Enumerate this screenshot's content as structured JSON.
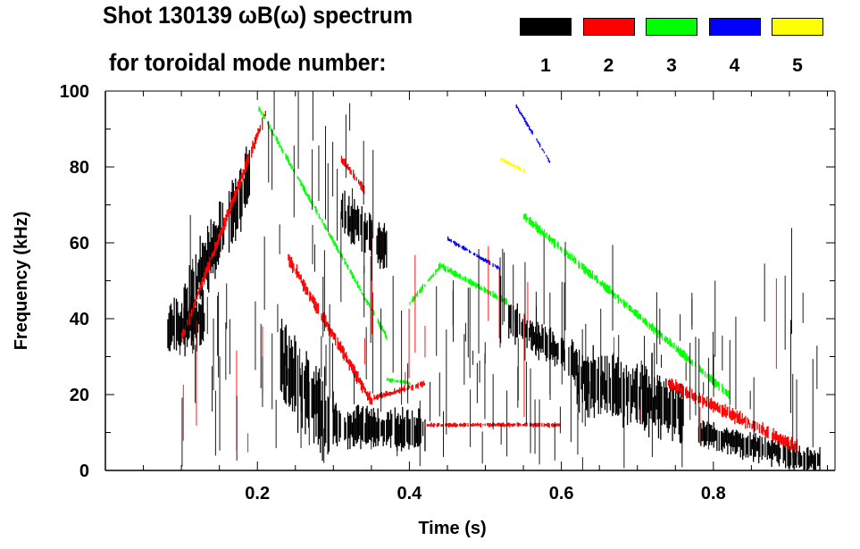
{
  "chart_data": {
    "type": "heatmap",
    "title": "Shot 130139 ωB(ω) spectrum",
    "subtitle": "for toroidal mode number:",
    "xlabel": "Time (s)",
    "ylabel": "Frequency (kHz)",
    "xlim": [
      0,
      0.96
    ],
    "ylim": [
      0,
      100
    ],
    "xticks": [
      "0.2",
      "0.4",
      "0.6",
      "0.8"
    ],
    "xtick_values": [
      0.2,
      0.4,
      0.6,
      0.8
    ],
    "yticks": [
      "0",
      "20",
      "40",
      "60",
      "80",
      "100"
    ],
    "ytick_values": [
      0,
      20,
      40,
      60,
      80,
      100
    ],
    "legend": [
      {
        "label": "1",
        "color": "#000000"
      },
      {
        "label": "2",
        "color": "#ff0000"
      },
      {
        "label": "3",
        "color": "#00ff00"
      },
      {
        "label": "4",
        "color": "#0000ff"
      },
      {
        "label": "5",
        "color": "#ffff00"
      }
    ],
    "series": [
      {
        "name": "1",
        "color": "#000000",
        "segments": [
          {
            "t": [
              0.08,
              0.13
            ],
            "f": [
              37,
              40
            ],
            "spread": 12
          },
          {
            "t": [
              0.1,
              0.19
            ],
            "f": [
              42,
              78
            ],
            "spread": 14
          },
          {
            "t": [
              0.23,
              0.3
            ],
            "f": [
              28,
              12
            ],
            "spread": 18
          },
          {
            "t": [
              0.3,
              0.42
            ],
            "f": [
              12,
              10
            ],
            "spread": 9
          },
          {
            "t": [
              0.31,
              0.37
            ],
            "f": [
              68,
              58
            ],
            "spread": 10
          },
          {
            "t": [
              0.53,
              0.62
            ],
            "f": [
              40,
              28
            ],
            "spread": 8
          },
          {
            "t": [
              0.62,
              0.76
            ],
            "f": [
              25,
              15
            ],
            "spread": 14
          },
          {
            "t": [
              0.78,
              0.94
            ],
            "f": [
              10,
              2
            ],
            "spread": 6
          }
        ]
      },
      {
        "name": "2",
        "color": "#ff0000",
        "segments": [
          {
            "t": [
              0.1,
              0.21
            ],
            "f": [
              35,
              94
            ],
            "spread": 3
          },
          {
            "t": [
              0.24,
              0.35
            ],
            "f": [
              56,
              18
            ],
            "spread": 3
          },
          {
            "t": [
              0.35,
              0.42
            ],
            "f": [
              19,
              23
            ],
            "spread": 1.5
          },
          {
            "t": [
              0.31,
              0.34
            ],
            "f": [
              82,
              74
            ],
            "spread": 2
          },
          {
            "t": [
              0.42,
              0.6
            ],
            "f": [
              12,
              12
            ],
            "spread": 1
          },
          {
            "t": [
              0.74,
              0.91
            ],
            "f": [
              23,
              6
            ],
            "spread": 3
          }
        ]
      },
      {
        "name": "3",
        "color": "#00ff00",
        "segments": [
          {
            "t": [
              0.2,
              0.37
            ],
            "f": [
              96,
              35
            ],
            "spread": 1.5
          },
          {
            "t": [
              0.37,
              0.4
            ],
            "f": [
              24,
              23
            ],
            "spread": 1
          },
          {
            "t": [
              0.4,
              0.44
            ],
            "f": [
              44,
              54
            ],
            "spread": 1.5
          },
          {
            "t": [
              0.44,
              0.53
            ],
            "f": [
              54,
              44
            ],
            "spread": 1.5
          },
          {
            "t": [
              0.55,
              0.82
            ],
            "f": [
              67,
              20
            ],
            "spread": 2
          }
        ]
      },
      {
        "name": "4",
        "color": "#0000ff",
        "segments": [
          {
            "t": [
              0.54,
              0.585
            ],
            "f": [
              96,
              81
            ],
            "spread": 1
          },
          {
            "t": [
              0.45,
              0.52
            ],
            "f": [
              61,
              53
            ],
            "spread": 1
          }
        ]
      },
      {
        "name": "5",
        "color": "#ffff00",
        "segments": [
          {
            "t": [
              0.52,
              0.55
            ],
            "f": [
              82,
              79
            ],
            "spread": 1
          }
        ]
      }
    ]
  }
}
